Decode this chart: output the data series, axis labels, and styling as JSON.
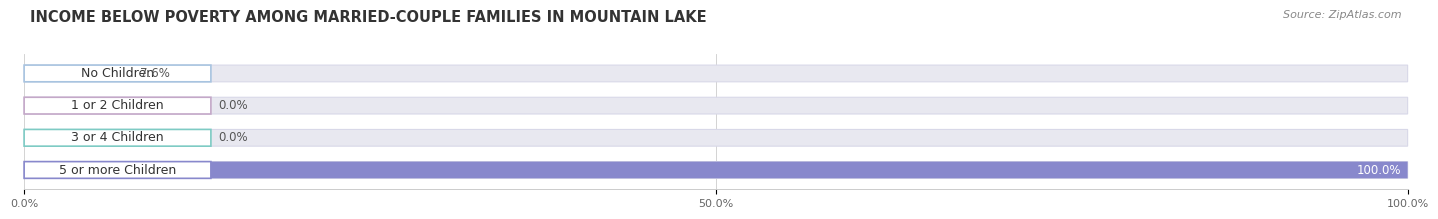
{
  "title": "INCOME BELOW POVERTY AMONG MARRIED-COUPLE FAMILIES IN MOUNTAIN LAKE",
  "source": "Source: ZipAtlas.com",
  "categories": [
    "No Children",
    "1 or 2 Children",
    "3 or 4 Children",
    "5 or more Children"
  ],
  "values": [
    7.6,
    0.0,
    0.0,
    100.0
  ],
  "bar_colors": [
    "#a8c4e0",
    "#c4a8c8",
    "#7ecbc4",
    "#8888cc"
  ],
  "xlim": [
    0,
    100
  ],
  "tick_labels": [
    "0.0%",
    "50.0%",
    "100.0%"
  ],
  "tick_values": [
    0,
    50,
    100
  ],
  "title_fontsize": 10.5,
  "label_fontsize": 9,
  "value_fontsize": 8.5,
  "source_fontsize": 8,
  "background_color": "#ffffff",
  "track_color": "#e8e8f0",
  "track_edge_color": "#d8d8e8"
}
